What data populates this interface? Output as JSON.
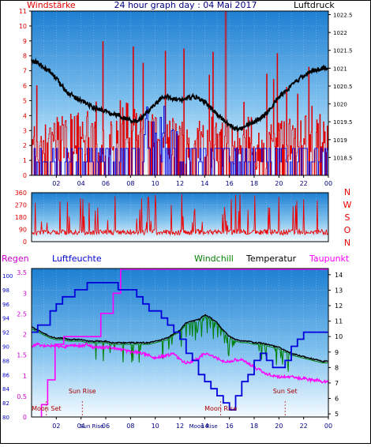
{
  "title": "24 hour graph day : 04 Mai 2017",
  "colors": {
    "wind_speed": "#e00000",
    "wind_gust": "#0000e0",
    "pressure": "#000000",
    "wind_dir": "#ee0000",
    "humidity": "#0000dd",
    "dewpoint": "#ff00ff",
    "temperature": "#000000",
    "windchill": "#008000",
    "sun": "#ff4040"
  },
  "chart_data": [
    {
      "type": "line",
      "name": "wind-pressure",
      "ylabel_left": "Windstärke",
      "ylabel_right": "Luftdruck",
      "ylim_left": [
        0,
        11
      ],
      "ylim_right": [
        1018,
        1022.6
      ],
      "left_ticks": [
        "0",
        "1",
        "2",
        "3",
        "4",
        "5",
        "6",
        "7",
        "8",
        "9",
        "10",
        "11"
      ],
      "right_ticks": [
        "1018.5",
        "1019",
        "1019.5",
        "1020",
        "1020.5",
        "1021",
        "1021.5",
        "1022",
        "1022.5"
      ],
      "x_ticks": [
        "02",
        "04",
        "06",
        "08",
        "10",
        "12",
        "14",
        "16",
        "18",
        "20",
        "22",
        "00"
      ],
      "xlim": [
        0,
        24
      ],
      "series": [
        {
          "key": "pressure",
          "x": [
            0,
            0.5,
            1,
            1.5,
            2,
            2.5,
            3,
            3.5,
            4,
            4.5,
            5,
            5.5,
            6,
            6.5,
            7,
            7.5,
            8,
            8.5,
            9,
            9.5,
            10,
            10.5,
            11,
            11.5,
            12,
            12.5,
            13,
            13.5,
            14,
            14.5,
            15,
            15.5,
            16,
            16.5,
            17,
            17.5,
            18,
            18.5,
            19,
            19.5,
            20,
            20.5,
            21,
            21.5,
            22,
            22.5,
            23,
            23.5,
            24
          ],
          "y": [
            1021.2,
            1021.15,
            1021.0,
            1020.9,
            1020.7,
            1020.5,
            1020.3,
            1020.2,
            1020.1,
            1020.0,
            1019.9,
            1019.85,
            1019.8,
            1019.7,
            1019.7,
            1019.6,
            1019.55,
            1019.5,
            1019.65,
            1019.8,
            1020.0,
            1020.15,
            1020.2,
            1020.15,
            1020.1,
            1020.15,
            1020.2,
            1020.15,
            1020.05,
            1019.9,
            1019.7,
            1019.55,
            1019.4,
            1019.3,
            1019.3,
            1019.4,
            1019.5,
            1019.6,
            1019.75,
            1019.95,
            1020.2,
            1020.35,
            1020.5,
            1020.65,
            1020.8,
            1020.9,
            1020.95,
            1021.0,
            1021.0
          ]
        }
      ]
    },
    {
      "type": "line",
      "name": "wind-direction",
      "ylim": [
        0,
        360
      ],
      "left_ticks": [
        "0",
        "90",
        "180",
        "270",
        "360"
      ],
      "right_labels": [
        "N",
        "W",
        "S",
        "O",
        "N"
      ],
      "xlim": [
        0,
        24
      ]
    },
    {
      "type": "line",
      "name": "temp-humidity",
      "legend": [
        "Regen",
        "Luftfeuchte",
        "Windchill",
        "Temperatur",
        "Taupunkt"
      ],
      "rain_ticks": [
        "0",
        "0.5",
        "1",
        "1.5",
        "2",
        "2.5",
        "3",
        "3.5"
      ],
      "humidity_ticks": [
        "80",
        "82",
        "84",
        "86",
        "88",
        "90",
        "92",
        "94",
        "96",
        "98",
        "100"
      ],
      "temp_ticks": [
        "5",
        "6",
        "7",
        "8",
        "9",
        "10",
        "11",
        "12",
        "13",
        "14"
      ],
      "x_ticks": [
        "02",
        "04",
        "06",
        "08",
        "10",
        "12",
        "14",
        "16",
        "18",
        "20",
        "22",
        "00"
      ],
      "xlim": [
        0,
        24
      ],
      "ylim_temp": [
        4.8,
        14.4
      ],
      "series": [
        {
          "key": "temperature",
          "x": [
            0,
            0.5,
            1,
            1.5,
            2,
            2.5,
            3,
            3.5,
            4,
            4.5,
            5,
            5.5,
            6,
            6.5,
            7,
            7.5,
            8,
            8.5,
            9,
            9.5,
            10,
            10.5,
            11,
            11.5,
            12,
            12.5,
            13,
            13.5,
            14,
            14.5,
            15,
            15.5,
            16,
            16.5,
            17,
            17.5,
            18,
            18.5,
            19,
            19.5,
            20,
            20.5,
            21,
            21.5,
            22,
            22.5,
            23,
            23.5,
            24
          ],
          "y": [
            10.6,
            10.4,
            10.2,
            10.0,
            9.9,
            9.9,
            9.8,
            9.8,
            9.8,
            9.7,
            9.7,
            9.7,
            9.7,
            9.6,
            9.6,
            9.6,
            9.6,
            9.6,
            9.6,
            9.6,
            9.7,
            9.8,
            9.9,
            10.2,
            10.4,
            10.9,
            11.0,
            11.1,
            11.4,
            11.2,
            10.9,
            10.4,
            10.0,
            9.8,
            9.7,
            9.7,
            9.6,
            9.6,
            9.5,
            9.4,
            9.3,
            9.1,
            8.9,
            8.8,
            8.7,
            8.6,
            8.5,
            8.4,
            8.4
          ]
        },
        {
          "key": "dewpoint",
          "x": [
            0,
            0.5,
            1,
            1.5,
            2,
            2.5,
            3,
            3.5,
            4,
            4.5,
            5,
            5.5,
            6,
            6.5,
            7,
            7.5,
            8,
            8.5,
            9,
            9.5,
            10,
            10.5,
            11,
            11.5,
            12,
            12.5,
            13,
            13.5,
            14,
            14.5,
            15,
            15.5,
            16,
            16.5,
            17,
            17.5,
            18,
            18.5,
            19,
            19.5,
            20,
            20.5,
            21,
            21.5,
            22,
            22.5,
            23,
            23.5,
            24
          ],
          "y": [
            9.4,
            9.5,
            9.4,
            9.4,
            9.4,
            9.3,
            9.4,
            9.4,
            9.4,
            9.5,
            9.3,
            9.3,
            9.3,
            9.3,
            9.2,
            9.1,
            9.0,
            9.0,
            8.9,
            8.8,
            8.6,
            8.7,
            8.8,
            8.9,
            8.5,
            8.3,
            8.4,
            8.6,
            8.9,
            8.8,
            8.6,
            8.4,
            8.4,
            8.5,
            8.5,
            8.3,
            8.0,
            7.8,
            7.6,
            7.5,
            7.4,
            7.4,
            7.4,
            7.3,
            7.3,
            7.2,
            7.2,
            7.1,
            7.1
          ]
        },
        {
          "key": "humidity",
          "x": [
            0,
            0.5,
            1,
            1.5,
            2,
            2.5,
            3,
            3.5,
            4,
            4.5,
            5,
            5.5,
            6,
            6.5,
            7,
            7.5,
            8,
            8.5,
            9,
            9.5,
            10,
            10.5,
            11,
            11.5,
            12,
            12.5,
            13,
            13.5,
            14,
            14.5,
            15,
            15.5,
            16,
            16.5,
            17,
            17.5,
            18,
            18.5,
            19,
            19.5,
            20,
            20.5,
            21,
            21.5,
            22,
            22.5,
            23,
            23.5,
            24
          ],
          "y": [
            92,
            93,
            93,
            95,
            96,
            97,
            97,
            98,
            98,
            99,
            99,
            99,
            99,
            99,
            98,
            98,
            98,
            97,
            96,
            95,
            95,
            94,
            93,
            92,
            91,
            89,
            88,
            86,
            85,
            84,
            83,
            82,
            81,
            83,
            85,
            86,
            88,
            89,
            88,
            87,
            87,
            88,
            90,
            91,
            92,
            92,
            92,
            92,
            92
          ]
        }
      ],
      "annotations": [
        {
          "text": "Moon Set",
          "x": 1.2
        },
        {
          "text": "Sun Rise",
          "x": 4.1
        },
        {
          "text": "Moon Rise",
          "x": 15.3
        },
        {
          "text": "Sun Set",
          "x": 20.5
        }
      ],
      "marker_labels": [
        "Sun Rise",
        "Moon Rise"
      ]
    }
  ]
}
